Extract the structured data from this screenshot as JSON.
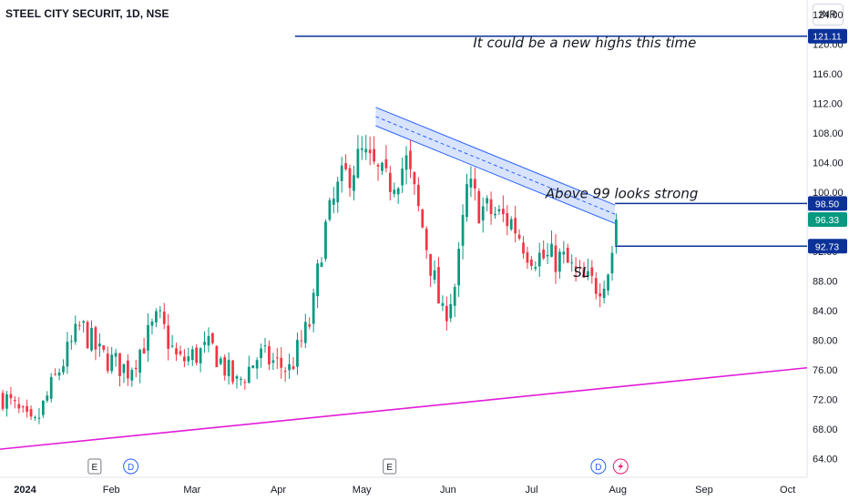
{
  "header": {
    "symbol_title": "STEEL CITY SECURIT, 1D, NSE",
    "currency": "INR"
  },
  "chart_data": {
    "type": "candlestick",
    "title": "STEEL CITY SECURIT, 1D, NSE",
    "ylim": [
      61.5,
      126
    ],
    "y_ticks": [
      "64.00",
      "68.00",
      "72.00",
      "76.00",
      "80.00",
      "84.00",
      "88.00",
      "92.00",
      "96.00",
      "100.00",
      "104.00",
      "108.00",
      "112.00",
      "116.00",
      "120.00",
      "124.00"
    ],
    "x_ticks": [
      "2024",
      "Feb",
      "Mar",
      "Apr",
      "May",
      "Jun",
      "Jul",
      "Aug",
      "Sep",
      "Oct"
    ],
    "x_tick_days": [
      0,
      31,
      60,
      91,
      121,
      152,
      182,
      213,
      244,
      274
    ],
    "x_view_days": [
      -9,
      281
    ],
    "colors": {
      "up": "#089981",
      "down": "#f23645",
      "level": "#0c3299",
      "trend": "#e11bd9",
      "channel": "#2962ff"
    },
    "candles_anchor": [
      [
        -8,
        72.5
      ],
      [
        3,
        68
      ],
      [
        11,
        75
      ],
      [
        20,
        82
      ],
      [
        27,
        78
      ],
      [
        37,
        76
      ],
      [
        48,
        83
      ],
      [
        55,
        77
      ],
      [
        67,
        79
      ],
      [
        76,
        74
      ],
      [
        84,
        78
      ],
      [
        95,
        76
      ],
      [
        103,
        83
      ],
      [
        107,
        94
      ],
      [
        113,
        101
      ],
      [
        121,
        105
      ],
      [
        130,
        101
      ],
      [
        137,
        104
      ],
      [
        143,
        95
      ],
      [
        150,
        83
      ],
      [
        155,
        88
      ],
      [
        159,
        101
      ],
      [
        163,
        98
      ],
      [
        169,
        97
      ],
      [
        175,
        96
      ],
      [
        181,
        92
      ],
      [
        187,
        91
      ],
      [
        193,
        91
      ],
      [
        200,
        88
      ],
      [
        206,
        87.5
      ],
      [
        210,
        90
      ],
      [
        212,
        94.5
      ],
      [
        213,
        96.33
      ]
    ],
    "last_close": 96.33,
    "levels": [
      {
        "price": 121.11,
        "label": "121.11",
        "x_start_day": 97
      },
      {
        "price": 98.5,
        "label": "98.50",
        "x_start_day": 212
      },
      {
        "price": 92.73,
        "label": "92.73",
        "x_start_day": 212
      }
    ],
    "trendline": {
      "from": [
        -9,
        65.3
      ],
      "to": [
        281,
        76.3
      ]
    },
    "channel": {
      "start_day": 126,
      "end_day": 212,
      "upper": [
        111.5,
        98.3
      ],
      "lower": [
        109.0,
        95.8
      ]
    },
    "annotations": [
      {
        "text": "It could be a new highs this time",
        "day": 161,
        "price": 119.6
      },
      {
        "text": "Above 99 looks strong",
        "day": 187,
        "price": 99.2
      },
      {
        "text": "SL",
        "day": 197,
        "price": 88.6
      }
    ],
    "event_markers": [
      {
        "type": "E",
        "day": 25
      },
      {
        "type": "D",
        "day": 38
      },
      {
        "type": "E",
        "day": 131
      },
      {
        "type": "D",
        "day": 206
      },
      {
        "type": "S",
        "day": 214
      }
    ]
  }
}
